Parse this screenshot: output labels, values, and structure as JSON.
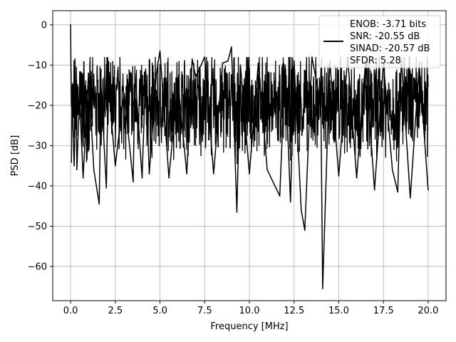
{
  "chart_data": {
    "type": "line",
    "title": "",
    "xlabel": "Frequency [MHz]",
    "ylabel": "PSD [dB]",
    "xlim": [
      -1.0,
      21.0
    ],
    "ylim": [
      -68.5,
      3.5
    ],
    "x_ticks": [
      0.0,
      2.5,
      5.0,
      7.5,
      10.0,
      12.5,
      15.0,
      17.5,
      20.0
    ],
    "x_tick_labels": [
      "0.0",
      "2.5",
      "5.0",
      "7.5",
      "10.0",
      "12.5",
      "15.0",
      "17.5",
      "20.0"
    ],
    "y_ticks": [
      0,
      -10,
      -20,
      -30,
      -40,
      -50,
      -60
    ],
    "y_tick_labels": [
      "0",
      "−10",
      "−20",
      "−30",
      "−40",
      "−50",
      "−60"
    ],
    "grid": true,
    "legend_position": "top-right",
    "series_color": "#000000",
    "series": [
      {
        "x": [
          0.0,
          0.02,
          0.05,
          0.1,
          0.2,
          0.3,
          0.35,
          0.5,
          0.7,
          1.0,
          1.3,
          1.6,
          1.7,
          2.0,
          2.1,
          2.5,
          2.9,
          3.0,
          3.5,
          3.6,
          4.0,
          4.2,
          4.4,
          4.8,
          5.0,
          5.5,
          6.0,
          6.5,
          6.8,
          7.0,
          7.5,
          8.0,
          8.5,
          8.8,
          9.0,
          9.3,
          9.5,
          10.0,
          10.5,
          11.0,
          11.7,
          12.0,
          12.3,
          12.5,
          12.9,
          13.1,
          13.5,
          14.0,
          14.1,
          14.5,
          15.0,
          15.5,
          16.0,
          16.5,
          17.0,
          17.5,
          18.0,
          18.3,
          18.5,
          19.0,
          19.5,
          20.0
        ],
        "y": [
          0.0,
          -10.0,
          -20.0,
          -22.0,
          -35.0,
          -14.0,
          -36.0,
          -18.0,
          -38.0,
          -12.0,
          -36.0,
          -44.5,
          -15.0,
          -40.5,
          -14.0,
          -35.0,
          -20.0,
          -17.0,
          -39.0,
          -12.0,
          -38.0,
          -11.0,
          -37.0,
          -12.0,
          -6.5,
          -38.0,
          -14.0,
          -37.0,
          -8.5,
          -13.0,
          -8.0,
          -37.0,
          -9.5,
          -9.0,
          -5.5,
          -46.5,
          -10.0,
          -37.0,
          -9.5,
          -36.0,
          -42.5,
          -10.0,
          -44.0,
          -9.0,
          -46.0,
          -51.0,
          -8.0,
          -20.0,
          -65.5,
          -9.0,
          -37.5,
          -8.0,
          -38.0,
          -9.0,
          -41.0,
          -9.5,
          -36.0,
          -41.5,
          -8.5,
          -43.0,
          -10.0,
          -41.0
        ]
      }
    ],
    "legend_lines": [
      "ENOB: -3.71 bits",
      "SNR: -20.55 dB",
      "SINAD: -20.57 dB",
      "SFDR: 5.28"
    ]
  }
}
